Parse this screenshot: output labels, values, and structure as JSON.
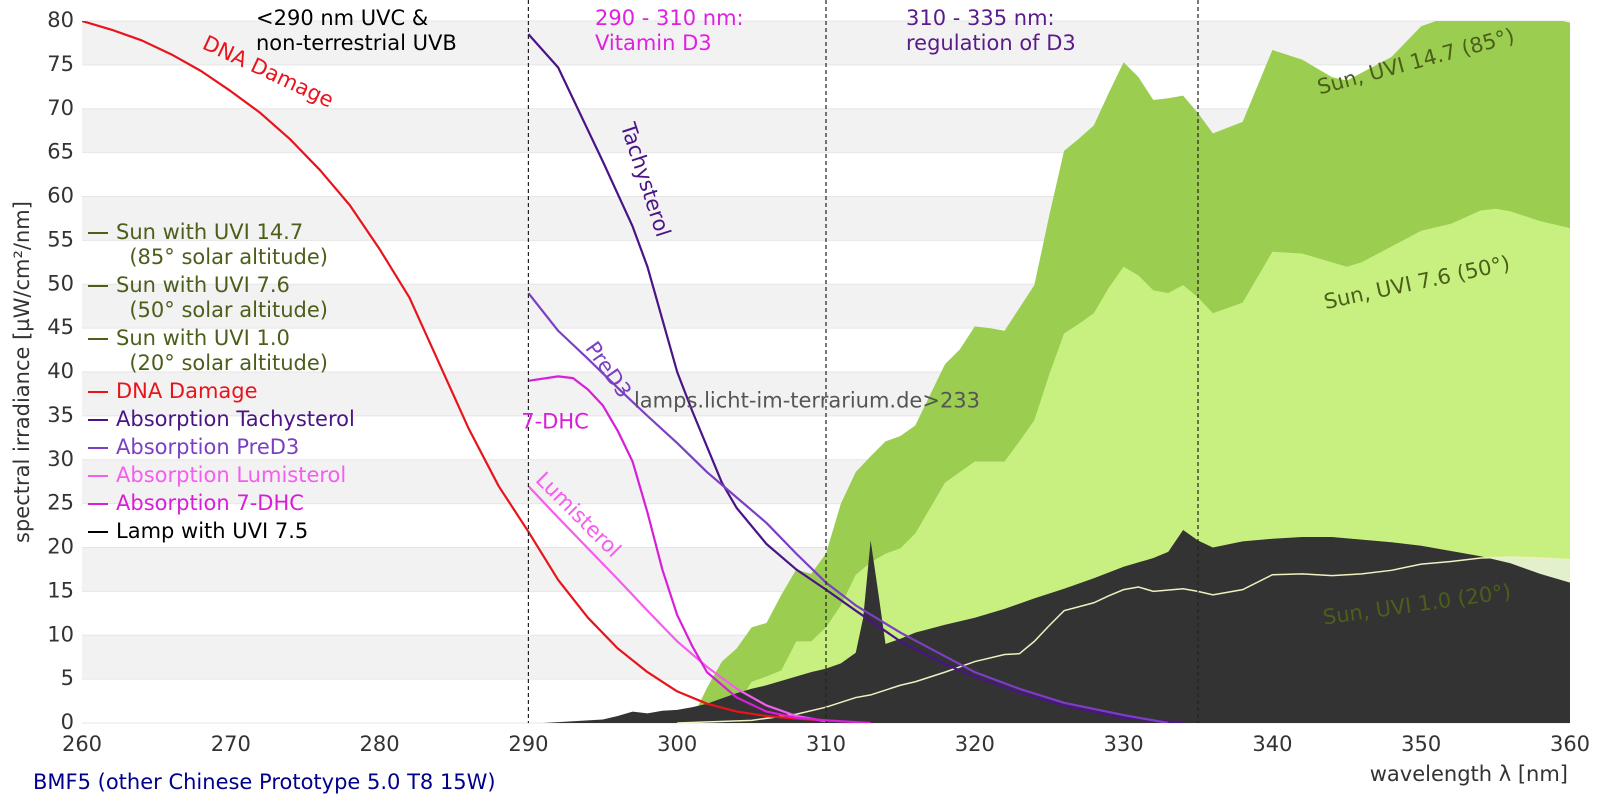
{
  "chart_data": {
    "type": "line",
    "subtitle": "BMF5 (other Chinese Prototype 5.0 T8 15W)",
    "x_label": "wavelength λ [nm]",
    "y_label": "spectral irradiance [µW/cm²/nm]",
    "xlim": [
      260,
      360
    ],
    "ylim": [
      0,
      80
    ],
    "xticks": [
      260,
      270,
      280,
      290,
      300,
      310,
      320,
      330,
      340,
      350,
      360
    ],
    "yticks": [
      0,
      5,
      10,
      15,
      20,
      25,
      30,
      35,
      40,
      45,
      50,
      55,
      60,
      65,
      70,
      75,
      80
    ],
    "grid": true,
    "vlines": [
      290,
      310,
      335
    ],
    "series": [
      {
        "name": "Sun with UVI 14.7\n  (85° solar altitude)",
        "color": "#9acd50",
        "label_color": "#4b5f1b",
        "fill": true,
        "x": [
          300,
          301,
          302,
          303,
          304,
          305,
          306,
          307,
          308,
          309,
          310,
          311,
          312,
          313,
          314,
          315,
          316,
          317,
          318,
          319,
          320,
          321,
          322,
          323,
          324,
          325,
          326,
          327,
          328,
          329,
          330,
          331,
          332,
          333,
          334,
          335,
          336,
          338,
          340,
          342,
          344,
          345,
          346,
          348,
          350,
          352,
          354,
          355,
          356,
          358,
          360
        ],
        "values": [
          0,
          0.5,
          4,
          7,
          8.5,
          10.9,
          11.4,
          14.6,
          17.5,
          17,
          19.3,
          25,
          28.6,
          30.4,
          32.1,
          32.7,
          33.9,
          37.4,
          40.9,
          42.6,
          45.2,
          45,
          44.7,
          47.3,
          49.9,
          57.8,
          65.2,
          66.6,
          68.1,
          71.8,
          75.3,
          73.6,
          71,
          71.2,
          71.5,
          69.5,
          67.2,
          68.5,
          76.7,
          75.6,
          73.6,
          73.2,
          74.1,
          75.9,
          79.4,
          80.6,
          81.8,
          82.4,
          82,
          80.6,
          79.8
        ]
      },
      {
        "name": "Sun with UVI 7.6\n  (50° solar altitude)",
        "color": "#c8f080",
        "label_color": "#4b5f1b",
        "fill": true,
        "x": [
          300,
          301,
          302,
          303,
          304,
          305,
          306,
          307,
          308,
          309,
          310,
          311,
          312,
          313,
          314,
          315,
          316,
          317,
          318,
          319,
          320,
          321,
          322,
          323,
          324,
          325,
          326,
          327,
          328,
          329,
          330,
          331,
          332,
          333,
          334,
          335,
          336,
          338,
          340,
          342,
          344,
          345,
          346,
          348,
          350,
          352,
          354,
          355,
          356,
          358,
          360
        ],
        "values": [
          0,
          0.3,
          0.8,
          1.4,
          2,
          4.7,
          5.3,
          6,
          9.3,
          9.3,
          10.9,
          13.4,
          16.9,
          18.3,
          19.3,
          19.9,
          21.6,
          24.5,
          27.4,
          28.6,
          29.8,
          29.8,
          29.8,
          32.1,
          34.5,
          39.7,
          44.4,
          45.5,
          46.7,
          49.6,
          52,
          51,
          49.3,
          49,
          49.9,
          48.5,
          46.7,
          47.9,
          53.7,
          53.5,
          52.5,
          52,
          52.5,
          54.3,
          56.1,
          56.9,
          58.4,
          58.6,
          58.3,
          57.2,
          56.4
        ]
      },
      {
        "name": "Sun with UVI 1.0\n  (20° solar altitude)",
        "color": "#e2f0cc",
        "label_color": "#4b5f1b",
        "fill": true,
        "stroke": "#f0f0c0",
        "x": [
          300,
          305,
          308,
          310,
          312,
          313,
          315,
          316,
          318,
          320,
          322,
          323,
          324,
          325,
          326,
          328,
          329,
          330,
          331,
          332,
          334,
          335,
          336,
          338,
          340,
          342,
          344,
          346,
          348,
          350,
          352,
          354,
          356,
          358,
          360
        ],
        "values": [
          0,
          0.3,
          1,
          1.8,
          2.9,
          3.2,
          4.3,
          4.7,
          5.8,
          7,
          7.8,
          7.9,
          9.3,
          11.1,
          12.8,
          13.7,
          14.5,
          15.2,
          15.5,
          15,
          15.3,
          15,
          14.6,
          15.2,
          16.9,
          17,
          16.8,
          17,
          17.4,
          18.1,
          18.4,
          18.8,
          18.9,
          18.8,
          18.6
        ]
      },
      {
        "name": "DNA Damage",
        "color": "#e8141c",
        "x": [
          260,
          262,
          264,
          266,
          268,
          270,
          272,
          274,
          276,
          278,
          280,
          282,
          284,
          286,
          288,
          290,
          292,
          294,
          296,
          298,
          300,
          302,
          304,
          306,
          308,
          310
        ],
        "values": [
          80,
          79,
          77.8,
          76.2,
          74.3,
          72,
          69.5,
          66.5,
          63,
          59,
          54,
          48.5,
          41,
          33.5,
          27,
          21.8,
          16.3,
          12,
          8.5,
          5.8,
          3.6,
          2.2,
          1.3,
          0.8,
          0.5,
          0.3
        ]
      },
      {
        "name": "Absorption Tachysterol",
        "color": "#4a1486",
        "x": [
          290,
          292,
          295,
          297,
          298,
          299,
          300,
          301,
          302,
          303,
          304,
          306,
          308,
          310,
          312,
          315,
          318,
          320,
          323,
          326,
          330,
          334
        ],
        "values": [
          78.5,
          74.7,
          64,
          56.6,
          52,
          46,
          40,
          35.6,
          31.5,
          27.4,
          24.5,
          20.4,
          17.5,
          15.2,
          12.8,
          9.3,
          6.7,
          5.3,
          3.5,
          2,
          0.6,
          0
        ]
      },
      {
        "name": "Absorption PreD3",
        "color": "#7b3fc4",
        "x": [
          290,
          292,
          294,
          296,
          298,
          300,
          302,
          304,
          306,
          308,
          310,
          312,
          315,
          318,
          320,
          323,
          326,
          330,
          333
        ],
        "values": [
          49,
          44.7,
          41.5,
          38.2,
          35,
          31.9,
          28.6,
          25.7,
          22.8,
          19.3,
          16,
          13.4,
          10.3,
          7.6,
          5.8,
          3.9,
          2.3,
          0.9,
          0
        ]
      },
      {
        "name": "Absorption Lumisterol",
        "color": "#f65cf0",
        "x": [
          290,
          292,
          294,
          296,
          298,
          300,
          302,
          304,
          306,
          308,
          310
        ],
        "values": [
          27,
          23.4,
          19.9,
          16.4,
          12.8,
          9.3,
          6.4,
          3.9,
          2,
          0.8,
          0.2
        ]
      },
      {
        "name": "Absorption 7-DHC",
        "color": "#d81ed8",
        "x": [
          290,
          292,
          293,
          294,
          295,
          296,
          297,
          298,
          299,
          300,
          301,
          302,
          304,
          306,
          308,
          310,
          313
        ],
        "values": [
          39,
          39.5,
          39.3,
          38,
          36.2,
          33.3,
          29.8,
          24,
          17.5,
          12.3,
          8.8,
          5.8,
          2.9,
          1.3,
          0.6,
          0.3,
          0
        ]
      },
      {
        "name": "Lamp with UVI 7.5",
        "color": "#333333",
        "label_color": "#000000",
        "fill": true,
        "x": [
          291,
          292,
          293,
          295,
          296,
          297,
          298,
          299,
          300,
          301,
          302,
          303,
          304,
          305,
          306,
          307,
          308,
          309,
          310,
          311,
          312,
          312.5,
          313,
          313.5,
          314,
          315,
          316,
          318,
          320,
          322,
          324,
          326,
          328,
          330,
          332,
          333,
          334,
          335,
          336,
          338,
          340,
          342,
          344,
          346,
          348,
          350,
          352,
          354,
          356,
          358,
          360
        ],
        "values": [
          0,
          0.1,
          0.2,
          0.4,
          0.8,
          1.3,
          1.1,
          1.4,
          1.5,
          1.8,
          2.2,
          2.8,
          3.4,
          3.9,
          4.3,
          4.8,
          5.3,
          5.8,
          6.2,
          6.8,
          8,
          12,
          20.8,
          15,
          9,
          9.6,
          10.3,
          11.2,
          12,
          13,
          14.2,
          15.3,
          16.5,
          17.8,
          18.8,
          19.5,
          22,
          20.8,
          20,
          20.7,
          21,
          21.2,
          21.2,
          20.9,
          20.6,
          20.2,
          19.6,
          19,
          18.2,
          17,
          16
        ]
      }
    ],
    "annotations": [
      {
        "text": "<290 nm UVC &\nnon-terrestrial UVB",
        "color": "#000000"
      },
      {
        "text": "290 - 310 nm:\nVitamin D3",
        "color": "#e020e0"
      },
      {
        "text": "310 - 335 nm:\nregulation of D3",
        "color": "#5a1a8a"
      },
      {
        "text": "DNA Damage",
        "color": "#e8141c"
      },
      {
        "text": "Tachysterol",
        "color": "#4a1486"
      },
      {
        "text": "PreD3",
        "color": "#7b3fc4"
      },
      {
        "text": "7-DHC",
        "color": "#d81ed8"
      },
      {
        "text": "Lumisterol",
        "color": "#f65cf0"
      },
      {
        "text": "Sun, UVI 14.7 (85°)",
        "color": "#4b5f1b"
      },
      {
        "text": "Sun, UVI 7.6 (50°)",
        "color": "#4b5f1b"
      },
      {
        "text": "Sun, UVI 1.0 (20°)",
        "color": "#4b5f1b"
      },
      {
        "text": "lamps.licht-im-terrarium.de>233",
        "color": "#555555"
      }
    ]
  }
}
